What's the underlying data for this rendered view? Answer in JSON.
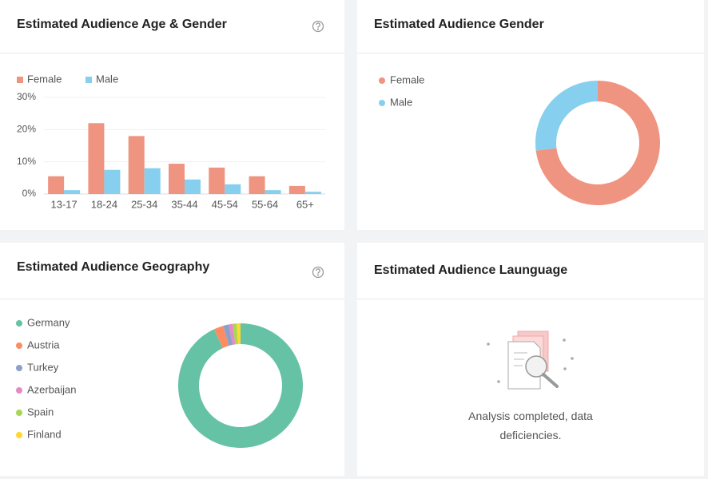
{
  "chart_data": [
    {
      "type": "bar",
      "title": "Estimated Audience Age & Gender",
      "categories": [
        "13-17",
        "18-24",
        "25-34",
        "35-44",
        "45-54",
        "55-64",
        "65+"
      ],
      "series": [
        {
          "name": "Female",
          "color": "#ee9480",
          "values": [
            5.5,
            22,
            18,
            9.4,
            8.2,
            5.5,
            2.5
          ]
        },
        {
          "name": "Male",
          "color": "#87cfee",
          "values": [
            1.2,
            7.5,
            8,
            4.5,
            3,
            1.2,
            0.7
          ]
        }
      ],
      "ylim": [
        0,
        30
      ],
      "yticks": [
        {
          "value": 0,
          "label": "0%"
        },
        {
          "value": 10,
          "label": "10%"
        },
        {
          "value": 20,
          "label": "20%"
        },
        {
          "value": 30,
          "label": "30%"
        }
      ],
      "grid": true,
      "legend": "top-left"
    },
    {
      "type": "donut",
      "title": "Estimated Audience Gender",
      "categories": [
        "Female",
        "Male"
      ],
      "values": [
        73,
        27
      ],
      "colors": [
        "#ee9480",
        "#87cfee"
      ],
      "legend": "left"
    },
    {
      "type": "donut",
      "title": "Estimated Audience Geography",
      "categories": [
        "Germany",
        "Austria",
        "Turkey",
        "Azerbaijan",
        "Spain",
        "Finland"
      ],
      "values": [
        93,
        2.5,
        1.5,
        1,
        1,
        1
      ],
      "colors": [
        "#66c2a5",
        "#fc8d62",
        "#8da0cb",
        "#e78ac3",
        "#a6d854",
        "#ffd92f"
      ],
      "legend": "left"
    }
  ],
  "empty_panel": {
    "title": "Estimated Audience Launguage",
    "message": "Analysis completed, data deficiencies."
  }
}
